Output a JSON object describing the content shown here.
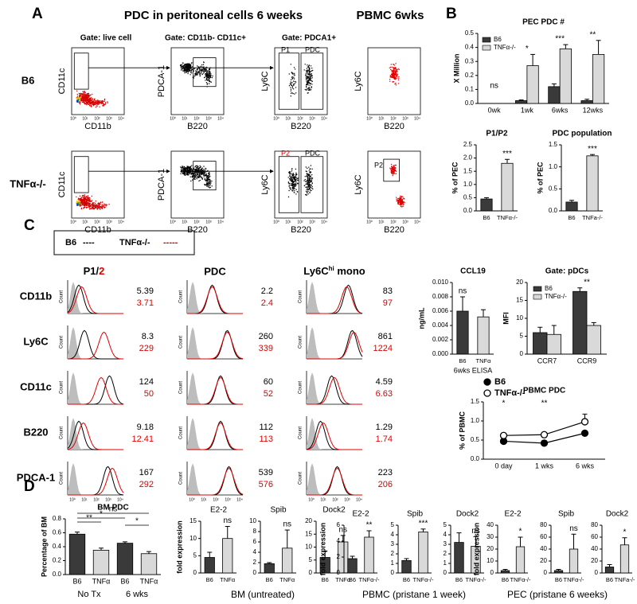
{
  "panel_a": {
    "label": "A",
    "title": "PDC in peritoneal cells 6 weeks",
    "pbmc_title": "PBMC 6wks",
    "gates": [
      "Gate: live cell",
      "Gate: CD11b- CD11c+",
      "Gate: PDCA1+"
    ],
    "rows": [
      "B6",
      "TNFα-/-"
    ],
    "x_axes": [
      "CD11b",
      "B220",
      "B220",
      "B220"
    ],
    "y_axes": [
      "CD11c",
      "PDCA-1",
      "Ly6C",
      "Ly6C"
    ],
    "gate_labels": {
      "b6": [
        "P1",
        "PDC"
      ],
      "tnf": [
        "P2",
        "PDC"
      ],
      "pbmc_tnf": "P2"
    },
    "flow_axis_ticks": [
      "10⁰",
      "10¹",
      "10²",
      "10³",
      "10⁴"
    ]
  },
  "panel_b": {
    "label": "B"
  },
  "panel_c": {
    "label": "C",
    "legend": [
      {
        "label": "B6",
        "key": "----"
      },
      {
        "label": "TNFα-/-",
        "key": "-----"
      }
    ],
    "column_headers": {
      "p12": [
        "P1/",
        "2"
      ],
      "pdc": "PDC",
      "mono": [
        "Ly6C",
        "hi",
        " mono"
      ]
    },
    "rows": [
      "CD11b",
      "Ly6C",
      "CD11c",
      "B220",
      "PDCA-1"
    ],
    "count_label": "Count",
    "mfi": [
      [
        [
          5.39,
          3.71
        ],
        [
          2.2,
          2.4
        ],
        [
          83,
          97
        ]
      ],
      [
        [
          8.3,
          229
        ],
        [
          260,
          339
        ],
        [
          861,
          1224
        ]
      ],
      [
        [
          124,
          50
        ],
        [
          60,
          52
        ],
        [
          4.59,
          6.63
        ]
      ],
      [
        [
          9.18,
          12.41
        ],
        [
          112,
          113
        ],
        [
          1.29,
          1.74
        ]
      ],
      [
        [
          167,
          292
        ],
        [
          539,
          576
        ],
        [
          223,
          206
        ]
      ]
    ]
  },
  "panel_d": {
    "label": "D",
    "captions": [
      "BM (untreated)",
      "PBMC (pristane 1 week)",
      "PEC (pristane 6 weeks)"
    ]
  },
  "chart_data": [
    {
      "type": "bar",
      "title": "PEC PDC #",
      "ylabel": "X Million",
      "categories": [
        "0wk",
        "1wk",
        "6wks",
        "12wks"
      ],
      "series": [
        {
          "name": "B6",
          "color": "#3a3a3a",
          "values": [
            0,
            0.02,
            0.12,
            0.02
          ],
          "errors": [
            0,
            0.005,
            0.02,
            0.01
          ]
        },
        {
          "name": "TNFα-/-",
          "color": "#d9d9d9",
          "values": [
            0,
            0.27,
            0.39,
            0.35
          ],
          "errors": [
            0,
            0.08,
            0.03,
            0.1
          ]
        }
      ],
      "ylim": [
        0,
        0.5
      ],
      "yticks": [
        {
          "value": 0,
          "label": "0.0"
        },
        0.1,
        0.2,
        0.3,
        0.4,
        0.5
      ],
      "annotations": [
        "ns",
        "*",
        "***",
        "**"
      ]
    },
    {
      "type": "bar",
      "title": "P1/P2",
      "ylabel": "% of PEC",
      "categories": [
        "B6",
        "TNFα-/-"
      ],
      "values": [
        0.45,
        1.8
      ],
      "errors": [
        0.05,
        0.15
      ],
      "colors": [
        "#3a3a3a",
        "#d9d9d9"
      ],
      "ylim": [
        0,
        2.5
      ],
      "yticks": [
        {
          "value": 0,
          "label": "0.0"
        },
        0.5,
        {
          "value": 1,
          "label": "1.0"
        },
        1.5,
        {
          "value": 2,
          "label": "2.0"
        },
        2.5
      ],
      "annotations": [
        null,
        "***"
      ]
    },
    {
      "type": "bar",
      "title": "PDC population",
      "ylabel": "% of PEC",
      "categories": [
        "B6",
        "TNFa-/-"
      ],
      "values": [
        0.2,
        1.25
      ],
      "errors": [
        0.04,
        0.03
      ],
      "colors": [
        "#3a3a3a",
        "#d9d9d9"
      ],
      "ylim": [
        0,
        1.5
      ],
      "yticks": [
        {
          "value": 0,
          "label": "0.0"
        },
        0.5,
        {
          "value": 1,
          "label": "1.0"
        },
        1.5
      ],
      "annotations": [
        null,
        "***"
      ]
    },
    {
      "type": "bar",
      "title": "CCL19",
      "ylabel": "ng/mL",
      "xlabel": "6wks ELISA",
      "categories": [
        "B6",
        "TNFα"
      ],
      "values": [
        0.006,
        0.0052
      ],
      "errors": [
        0.002,
        0.001
      ],
      "colors": [
        "#3a3a3a",
        "#d9d9d9"
      ],
      "ylim": [
        0,
        0.01
      ],
      "yticks": [
        {
          "value": 0,
          "label": "0.000"
        },
        {
          "value": 0.002,
          "label": "0.002"
        },
        {
          "value": 0.004,
          "label": "0.004"
        },
        {
          "value": 0.006,
          "label": "0.006"
        },
        {
          "value": 0.008,
          "label": "0.008"
        },
        {
          "value": 0.01,
          "label": "0.010"
        }
      ],
      "annotations": [
        "ns",
        null
      ]
    },
    {
      "type": "bar",
      "title": "Gate: pDCs",
      "ylabel": "MFI",
      "categories": [
        "CCR7",
        "CCR9"
      ],
      "series": [
        {
          "name": "B6",
          "color": "#3a3a3a",
          "values": [
            6,
            17.5
          ],
          "errors": [
            1.5,
            1
          ]
        },
        {
          "name": "TNFα-/-",
          "color": "#d9d9d9",
          "values": [
            5.5,
            8
          ],
          "errors": [
            2.5,
            0.8
          ]
        }
      ],
      "ylim": [
        0,
        20
      ],
      "yticks": [
        0,
        5,
        10,
        15,
        20
      ],
      "annotations": [
        null,
        "**"
      ]
    },
    {
      "type": "line",
      "title": "PBMC PDC",
      "ylabel": "% of PBMC",
      "categories": [
        "0 day",
        "1 wks",
        "6 wks"
      ],
      "series": [
        {
          "name": "B6",
          "color": "#000000",
          "filled": true,
          "values": [
            0.47,
            0.42,
            0.68
          ],
          "errors": [
            0.02,
            0.02,
            0.03
          ]
        },
        {
          "name": "TNFα-/-",
          "color": "#000000",
          "filled": false,
          "values": [
            0.62,
            0.64,
            0.98
          ],
          "errors": [
            0.02,
            0.02,
            0.2
          ]
        }
      ],
      "ylim": [
        0,
        1.5
      ],
      "yticks": [
        {
          "value": 0,
          "label": "0.0"
        },
        0.5,
        {
          "value": 1,
          "label": "1.0"
        },
        1.5
      ],
      "annotations": [
        "*",
        "**",
        null
      ]
    },
    {
      "type": "bar",
      "title": "BM PDC",
      "ylabel": "Percentage of BM",
      "categories": [
        "B6",
        "TNFα",
        "B6",
        "TNFα"
      ],
      "values": [
        0.58,
        0.35,
        0.45,
        0.3
      ],
      "errors": [
        0.03,
        0.03,
        0.02,
        0.03
      ],
      "colors": [
        "#3a3a3a",
        "#d9d9d9",
        "#3a3a3a",
        "#d9d9d9"
      ],
      "ylim": [
        0,
        0.8
      ],
      "yticks": [
        {
          "value": 0,
          "label": "0.0"
        },
        0.2,
        0.4,
        0.6,
        0.8
      ],
      "groups": [
        "No Tx",
        "6 wks"
      ],
      "significance": [
        "**",
        "*",
        "ns",
        "*"
      ]
    },
    {
      "type": "bar",
      "title": "E2-2",
      "ylabel": "fold expression",
      "categories": [
        "B6",
        "TNFα"
      ],
      "values": [
        4.5,
        10
      ],
      "errors": [
        1.5,
        3.5
      ],
      "colors": [
        "#3a3a3a",
        "#d9d9d9"
      ],
      "ylim": [
        0,
        15
      ],
      "yticks": [
        0,
        5,
        10,
        15
      ],
      "annotations": [
        null,
        "ns"
      ]
    },
    {
      "type": "bar",
      "title": "Spib",
      "categories": [
        "B6",
        "TNFα"
      ],
      "values": [
        1.8,
        4.8
      ],
      "errors": [
        0.2,
        3.5
      ],
      "colors": [
        "#3a3a3a",
        "#d9d9d9"
      ],
      "ylim": [
        0,
        10
      ],
      "yticks": [
        0,
        2,
        4,
        6,
        8,
        10
      ],
      "annotations": [
        null,
        "ns"
      ]
    },
    {
      "type": "bar",
      "title": "Dock2",
      "categories": [
        "B6",
        "TNFα"
      ],
      "values": [
        6,
        12
      ],
      "errors": [
        2.5,
        2.5
      ],
      "colors": [
        "#3a3a3a",
        "#d9d9d9"
      ],
      "ylim": [
        0,
        20
      ],
      "yticks": [
        0,
        5,
        10,
        15,
        20
      ],
      "annotations": [
        null,
        "ns"
      ]
    },
    {
      "type": "bar",
      "title": "E2-2",
      "ylabel": "fold expression",
      "categories": [
        "B6",
        "TNFα-/-"
      ],
      "values": [
        1.8,
        4.5
      ],
      "errors": [
        0.3,
        0.8
      ],
      "colors": [
        "#3a3a3a",
        "#d9d9d9"
      ],
      "ylim": [
        0,
        6
      ],
      "yticks": [
        0,
        2,
        4,
        6
      ],
      "annotations": [
        null,
        "**"
      ]
    },
    {
      "type": "bar",
      "title": "Spib",
      "categories": [
        "B6",
        "TNFα-/-"
      ],
      "values": [
        1.3,
        4.3
      ],
      "errors": [
        0.2,
        0.3
      ],
      "colors": [
        "#3a3a3a",
        "#d9d9d9"
      ],
      "ylim": [
        0,
        5
      ],
      "yticks": [
        0,
        1,
        2,
        3,
        4,
        5
      ],
      "annotations": [
        null,
        "***"
      ]
    },
    {
      "type": "bar",
      "title": "Dock2",
      "categories": [
        "B6",
        "TNFα-/-"
      ],
      "values": [
        3.2,
        2.8
      ],
      "errors": [
        1,
        1
      ],
      "colors": [
        "#3a3a3a",
        "#d9d9d9"
      ],
      "ylim": [
        0,
        5
      ],
      "yticks": [
        0,
        1,
        2,
        3,
        4,
        5
      ],
      "annotations": [
        null,
        "ns"
      ]
    },
    {
      "type": "bar",
      "title": "E2-2",
      "ylabel": "fold expression",
      "categories": [
        "B6",
        "TNFα-/-"
      ],
      "values": [
        2,
        22
      ],
      "errors": [
        1,
        8
      ],
      "colors": [
        "#3a3a3a",
        "#d9d9d9"
      ],
      "ylim": [
        0,
        40
      ],
      "yticks": [
        0,
        10,
        20,
        30,
        40
      ],
      "annotations": [
        null,
        "*"
      ]
    },
    {
      "type": "bar",
      "title": "Spib",
      "categories": [
        "B6",
        "TNFα-/-"
      ],
      "values": [
        4,
        40
      ],
      "errors": [
        2,
        25
      ],
      "colors": [
        "#3a3a3a",
        "#d9d9d9"
      ],
      "ylim": [
        0,
        80
      ],
      "yticks": [
        0,
        20,
        40,
        60,
        80
      ],
      "annotations": [
        null,
        "ns"
      ]
    },
    {
      "type": "bar",
      "title": "Dock2",
      "categories": [
        "B6",
        "TNFa-/-"
      ],
      "values": [
        10,
        47
      ],
      "errors": [
        4,
        12
      ],
      "colors": [
        "#3a3a3a",
        "#d9d9d9"
      ],
      "ylim": [
        0,
        80
      ],
      "yticks": [
        0,
        20,
        40,
        60,
        80
      ],
      "annotations": [
        null,
        "*"
      ]
    }
  ]
}
